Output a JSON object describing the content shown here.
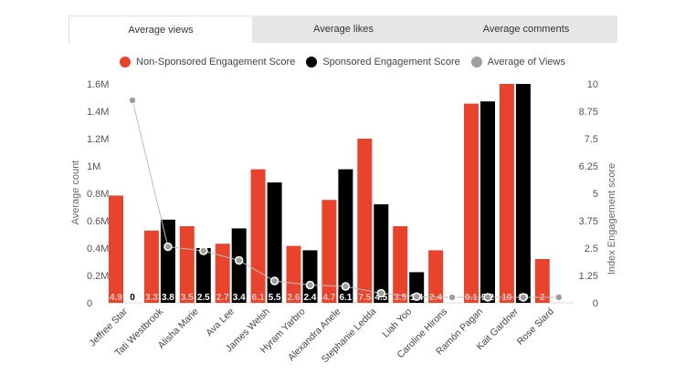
{
  "tabs": [
    {
      "label": "Average views",
      "active": true
    },
    {
      "label": "Average likes",
      "active": false
    },
    {
      "label": "Average comments",
      "active": false
    }
  ],
  "colors": {
    "non_sponsored": "#e8432d",
    "sponsored": "#000000",
    "views": "#9e9e9e",
    "label_light": "#f5c6bd",
    "label_dark": "#ffffff"
  },
  "chart_data": {
    "type": "bar",
    "title": "",
    "categories": [
      "Jeffree Star",
      "Tati Westbrook",
      "Alisha Marie",
      "Ava Lee",
      "James Welsh",
      "Hyram Yarbro",
      "Alexandra Anele",
      "Stephanie Ledda",
      "Liah Yoo",
      "Caroline Hirons",
      "Ramón Pagan",
      "Kait Gardner",
      "Rose Siard"
    ],
    "series": [
      {
        "name": "Non-Sponsored Engagement Score",
        "type": "bar",
        "axis": "right",
        "values": [
          4.9,
          3.3,
          3.5,
          2.7,
          6.1,
          2.6,
          4.7,
          7.5,
          3.5,
          2.4,
          9.1,
          10,
          2
        ]
      },
      {
        "name": "Sponsored Engagement Score",
        "type": "bar",
        "axis": "right",
        "values": [
          0,
          3.8,
          2.5,
          3.4,
          5.5,
          2.4,
          6.1,
          4.5,
          1.4,
          0,
          9.2,
          10,
          0
        ]
      },
      {
        "name": "Average of Views",
        "type": "line",
        "axis": "left",
        "values": [
          1440000,
          370000,
          340000,
          270000,
          120000,
          90000,
          80000,
          30000,
          5000,
          0,
          0,
          0,
          0
        ]
      }
    ],
    "legend": [
      "Non-Sponsored Engagement Score",
      "Sponsored Engagement Score",
      "Average of Views"
    ],
    "legend_position": "top",
    "ylabel_left": "Average count",
    "ylabel_right": "Index Engagement score",
    "ylim_left": [
      0,
      1600000
    ],
    "ylim_right": [
      0,
      10
    ],
    "left_ticks": [
      "0",
      "0.2M",
      "0.4M",
      "0.6M",
      "0.8M",
      "1M",
      "1.2M",
      "1.4M",
      "1.6M"
    ],
    "right_ticks": [
      "0",
      "1.25",
      "2.5",
      "3.75",
      "5",
      "6.25",
      "7.5",
      "8.75",
      "10"
    ],
    "grid": false
  }
}
